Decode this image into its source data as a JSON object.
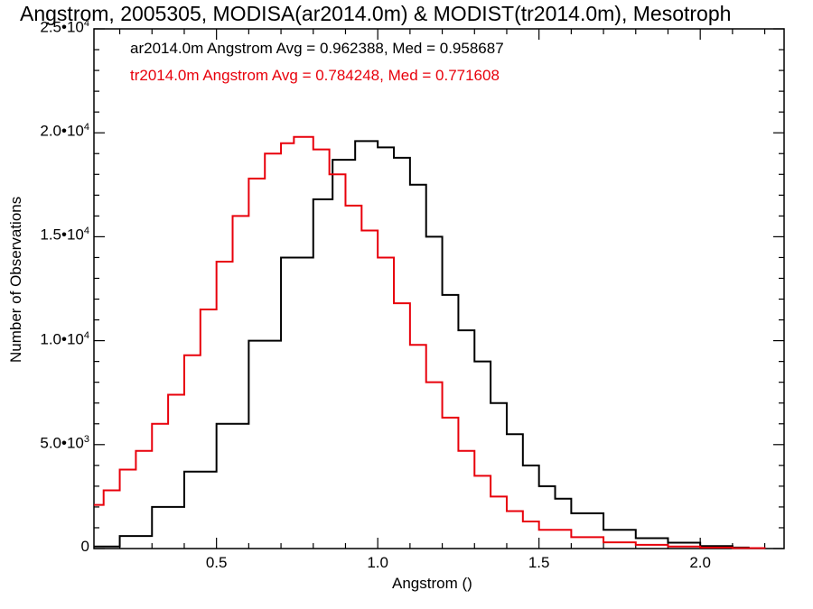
{
  "chart_data": {
    "type": "line",
    "title": "Angstrom, 2005305, MODISA(ar2014.0m) & MODIST(tr2014.0m), Mesotroph",
    "xlabel": "Angstrom ()",
    "ylabel": "Number of Observations",
    "xlim": [
      0.12,
      2.26
    ],
    "ylim": [
      0,
      25000
    ],
    "x_ticks": [
      "0.5",
      "1.0",
      "1.5",
      "2.0"
    ],
    "y_ticks": [
      "0",
      "5.0•10",
      "1.0•10",
      "1.5•10",
      "2.0•10",
      "2.5•10"
    ],
    "y_tick_exponents": [
      "",
      "3",
      "4",
      "4",
      "4",
      "4"
    ],
    "legend_placement": "top-left",
    "grid": false,
    "series": [
      {
        "name": "ar2014.0m Angstrom Avg = 0.962388, Med = 0.958687",
        "color": "#000000",
        "x": [
          0.12,
          0.2,
          0.3,
          0.4,
          0.5,
          0.6,
          0.7,
          0.8,
          0.86,
          0.93,
          1.0,
          1.05,
          1.1,
          1.15,
          1.2,
          1.25,
          1.3,
          1.35,
          1.4,
          1.45,
          1.5,
          1.55,
          1.6,
          1.7,
          1.8,
          1.9,
          2.0,
          2.1,
          2.15
        ],
        "values": [
          100,
          600,
          2000,
          3700,
          6000,
          10000,
          14000,
          16800,
          18700,
          19600,
          19300,
          18800,
          17500,
          15000,
          12200,
          10500,
          9000,
          7000,
          5500,
          4000,
          3000,
          2400,
          1700,
          900,
          500,
          280,
          120,
          50,
          20
        ]
      },
      {
        "name": "tr2014.0m Angstrom Avg = 0.784248, Med = 0.771608",
        "color": "#e8000b",
        "x": [
          0.12,
          0.15,
          0.2,
          0.25,
          0.3,
          0.35,
          0.4,
          0.45,
          0.5,
          0.55,
          0.6,
          0.65,
          0.7,
          0.74,
          0.8,
          0.85,
          0.9,
          0.95,
          1.0,
          1.05,
          1.1,
          1.15,
          1.2,
          1.25,
          1.3,
          1.35,
          1.4,
          1.45,
          1.5,
          1.6,
          1.7,
          1.8,
          1.9,
          2.0,
          2.1,
          2.2
        ],
        "values": [
          2100,
          2800,
          3800,
          4700,
          6000,
          7400,
          9300,
          11500,
          13800,
          16000,
          17800,
          19000,
          19500,
          19800,
          19200,
          18000,
          16500,
          15300,
          14000,
          11800,
          9800,
          8000,
          6300,
          4700,
          3500,
          2500,
          1800,
          1300,
          900,
          550,
          300,
          180,
          100,
          50,
          20,
          0
        ]
      }
    ]
  }
}
